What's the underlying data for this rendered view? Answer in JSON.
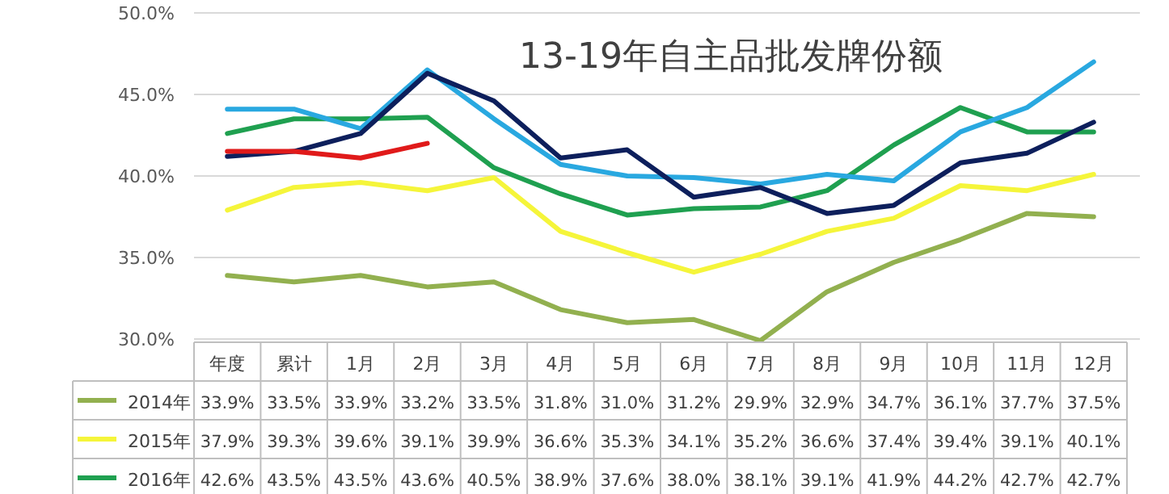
{
  "chart_data": {
    "type": "line",
    "title": "13-19年自主品批发牌份额",
    "categories": [
      "年度",
      "累计",
      "1月",
      "2月",
      "3月",
      "4月",
      "5月",
      "6月",
      "7月",
      "8月",
      "9月",
      "10月",
      "11月",
      "12月"
    ],
    "ylim": [
      29.8,
      50
    ],
    "legend": "bottom",
    "yticks": [
      {
        "value": 30,
        "label": "30.0%"
      },
      {
        "value": 35,
        "label": "35.0%"
      },
      {
        "value": 40,
        "label": "40.0%"
      },
      {
        "value": 45,
        "label": "45.0%"
      },
      {
        "value": 50,
        "label": "50.0%"
      }
    ],
    "grid": "y",
    "line_style": "solid",
    "series": [
      {
        "name": "2014年",
        "color": "#92b04f",
        "values": [
          33.9,
          33.5,
          33.9,
          33.2,
          33.5,
          31.8,
          31.0,
          31.2,
          29.9,
          32.9,
          34.7,
          36.1,
          37.7,
          37.5
        ],
        "value_labels": [
          "33.9%",
          "33.5%",
          "33.9%",
          "33.2%",
          "33.5%",
          "31.8%",
          "31.0%",
          "31.2%",
          "29.9%",
          "32.9%",
          "34.7%",
          "36.1%",
          "37.7%",
          "37.5%"
        ]
      },
      {
        "name": "2015年",
        "color": "#f5f53a",
        "values": [
          37.9,
          39.3,
          39.6,
          39.1,
          39.9,
          36.6,
          35.3,
          34.1,
          35.2,
          36.6,
          37.4,
          39.4,
          39.1,
          40.1
        ],
        "value_labels": [
          "37.9%",
          "39.3%",
          "39.6%",
          "39.1%",
          "39.9%",
          "36.6%",
          "35.3%",
          "34.1%",
          "35.2%",
          "36.6%",
          "37.4%",
          "39.4%",
          "39.1%",
          "40.1%"
        ]
      },
      {
        "name": "2016年",
        "color": "#1fa050",
        "values": [
          42.6,
          43.5,
          43.5,
          43.6,
          40.5,
          38.9,
          37.6,
          38.0,
          38.1,
          39.1,
          41.9,
          44.2,
          42.7,
          42.7
        ],
        "value_labels": [
          "42.6%",
          "43.5%",
          "43.5%",
          "43.6%",
          "40.5%",
          "38.9%",
          "37.6%",
          "38.0%",
          "38.1%",
          "39.1%",
          "41.9%",
          "44.2%",
          "42.7%",
          "42.7%"
        ]
      },
      {
        "color": "#29a8e0",
        "values": [
          44.1,
          44.1,
          42.9,
          46.5,
          43.5,
          40.7,
          40.0,
          39.9,
          39.5,
          40.1,
          39.7,
          42.7,
          44.2,
          47.0
        ]
      },
      {
        "color": "#0d1f5c",
        "values": [
          41.2,
          41.5,
          42.6,
          46.3,
          44.6,
          41.1,
          41.6,
          38.7,
          39.3,
          37.7,
          38.2,
          40.8,
          41.4,
          43.3
        ]
      },
      {
        "color": "#e01a1a",
        "values": [
          41.5,
          41.5,
          41.1,
          42.0,
          null,
          null,
          null,
          null,
          null,
          null,
          null,
          null,
          null,
          null
        ]
      }
    ]
  }
}
